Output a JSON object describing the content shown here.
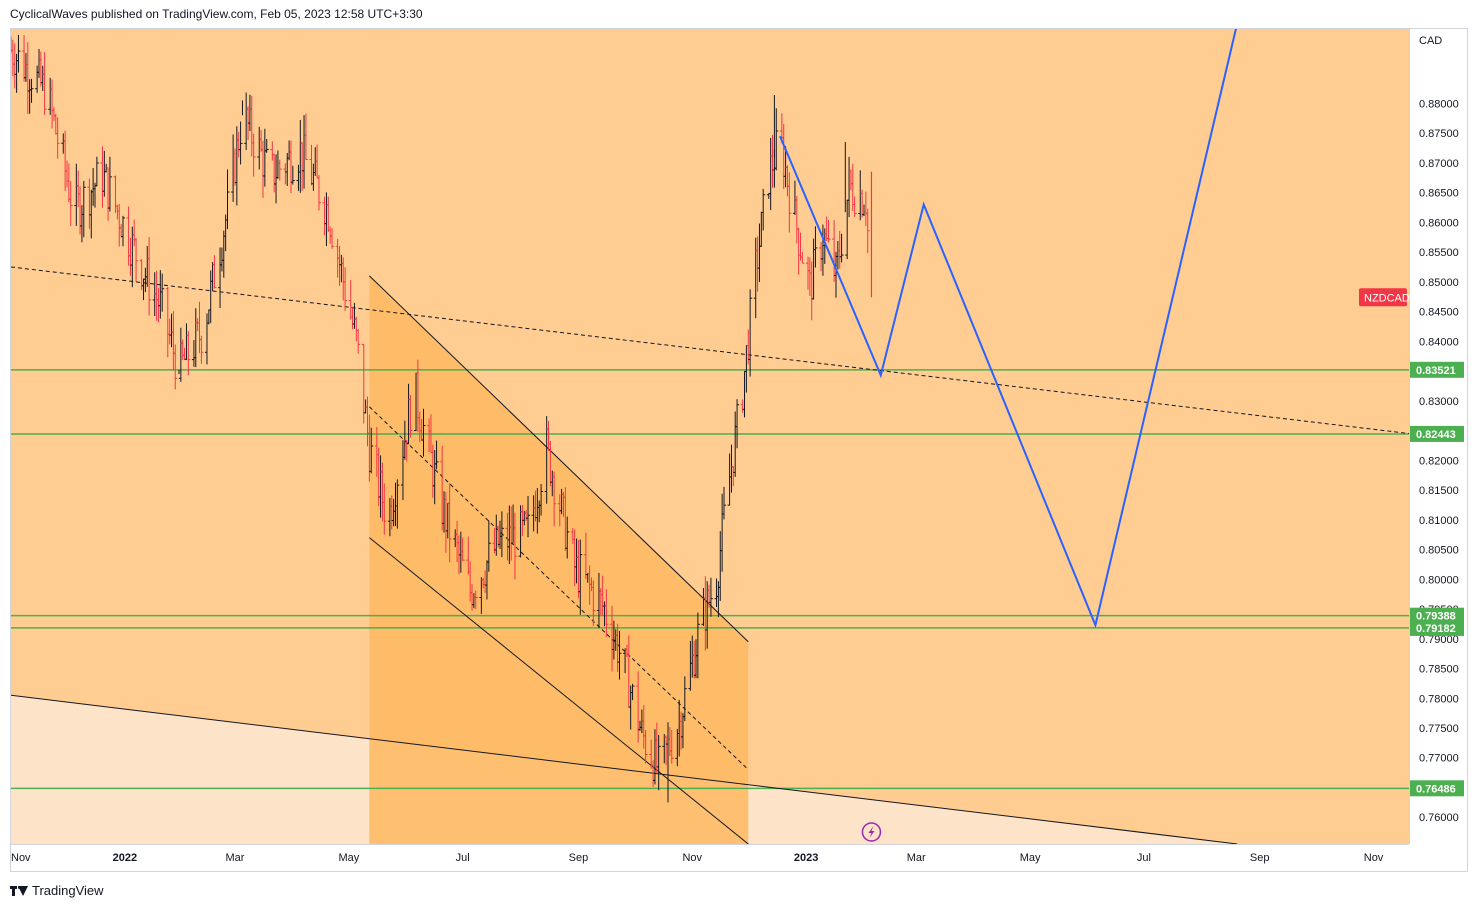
{
  "header": {
    "published_text": "CyclicalWaves published on TradingView.com, Feb 05, 2023 12:58 UTC+3:30"
  },
  "footer": {
    "brand": "TradingView"
  },
  "colors": {
    "background": "#ffcc91",
    "channel_fill": "#ffb860",
    "lower_zone": "#fde3c8",
    "up_candle": "#131722",
    "down_candle": "#f23645",
    "support_line": "#4caf50",
    "forecast": "#2962ff",
    "symbol_badge": "#f23645"
  },
  "chart_data": {
    "type": "ohlc",
    "symbol": "NZDCAD",
    "currency_label": "CAD",
    "last_price": 0.8474,
    "y_range": [
      0.7555,
      0.8925
    ],
    "x_range": [
      "2021-11-01",
      "2023-11-20"
    ],
    "y_tick_values": [
      0.76,
      0.765,
      0.77,
      0.775,
      0.78,
      0.785,
      0.79,
      0.795,
      0.8,
      0.805,
      0.81,
      0.815,
      0.82,
      0.825,
      0.83,
      0.835,
      0.84,
      0.845,
      0.85,
      0.855,
      0.86,
      0.865,
      0.87,
      0.875,
      0.88
    ],
    "y_tick_labels": [
      "0.76000",
      "0.76500",
      "0.77000",
      "0.77500",
      "0.78000",
      "0.78500",
      "0.79000",
      "0.79500",
      "0.80000",
      "0.80500",
      "0.81000",
      "0.81500",
      "0.82000",
      "0.82500",
      "0.83000",
      "0.83500",
      "0.84000",
      "0.84500",
      "0.85000",
      "0.85500",
      "0.86000",
      "0.86500",
      "0.87000",
      "0.87500",
      "0.88000"
    ],
    "x_ticks": [
      {
        "date": "2021-11-01",
        "label": "Nov",
        "bold": false
      },
      {
        "date": "2022-01-01",
        "label": "2022",
        "bold": true
      },
      {
        "date": "2022-03-01",
        "label": "Mar",
        "bold": false
      },
      {
        "date": "2022-05-01",
        "label": "May",
        "bold": false
      },
      {
        "date": "2022-07-01",
        "label": "Jul",
        "bold": false
      },
      {
        "date": "2022-09-01",
        "label": "Sep",
        "bold": false
      },
      {
        "date": "2022-11-01",
        "label": "Nov",
        "bold": false
      },
      {
        "date": "2023-01-01",
        "label": "2023",
        "bold": true
      },
      {
        "date": "2023-03-01",
        "label": "Mar",
        "bold": false
      },
      {
        "date": "2023-05-01",
        "label": "May",
        "bold": false
      },
      {
        "date": "2023-07-01",
        "label": "Jul",
        "bold": false
      },
      {
        "date": "2023-09-01",
        "label": "Sep",
        "bold": false
      },
      {
        "date": "2023-11-01",
        "label": "Nov",
        "bold": false
      }
    ],
    "horizontal_levels": [
      {
        "value": 0.83521,
        "label": "0.83521"
      },
      {
        "value": 0.82443,
        "label": "0.82443"
      },
      {
        "value": 0.79388,
        "label": "0.79388"
      },
      {
        "value": 0.79182,
        "label": "0.79182"
      },
      {
        "value": 0.76486,
        "label": "0.76486"
      }
    ],
    "price_path": [
      [
        "2021-11-01",
        0.889
      ],
      [
        "2021-11-20",
        0.882
      ],
      [
        "2021-12-05",
        0.862
      ],
      [
        "2021-12-20",
        0.868
      ],
      [
        "2022-01-05",
        0.856
      ],
      [
        "2022-01-20",
        0.846
      ],
      [
        "2022-01-30",
        0.8352
      ],
      [
        "2022-02-12",
        0.842
      ],
      [
        "2022-02-25",
        0.862
      ],
      [
        "2022-03-05",
        0.878
      ],
      [
        "2022-03-20",
        0.868
      ],
      [
        "2022-04-05",
        0.872
      ],
      [
        "2022-04-20",
        0.862
      ],
      [
        "2022-05-05",
        0.84
      ],
      [
        "2022-05-12",
        0.822
      ],
      [
        "2022-05-22",
        0.81
      ],
      [
        "2022-06-05",
        0.832
      ],
      [
        "2022-06-20",
        0.812
      ],
      [
        "2022-07-05",
        0.798
      ],
      [
        "2022-07-20",
        0.806
      ],
      [
        "2022-08-05",
        0.808
      ],
      [
        "2022-08-15",
        0.822
      ],
      [
        "2022-08-30",
        0.802
      ],
      [
        "2022-09-15",
        0.795
      ],
      [
        "2022-09-25",
        0.786
      ],
      [
        "2022-10-05",
        0.774
      ],
      [
        "2022-10-14",
        0.768
      ],
      [
        "2022-10-25",
        0.776
      ],
      [
        "2022-11-05",
        0.792
      ],
      [
        "2022-11-14",
        0.8
      ],
      [
        "2022-11-20",
        0.815
      ],
      [
        "2022-11-28",
        0.832
      ],
      [
        "2022-12-05",
        0.852
      ],
      [
        "2022-12-12",
        0.868
      ],
      [
        "2022-12-18",
        0.874
      ],
      [
        "2022-12-25",
        0.862
      ],
      [
        "2023-01-03",
        0.849
      ],
      [
        "2023-01-10",
        0.858
      ],
      [
        "2023-01-17",
        0.851
      ],
      [
        "2023-01-24",
        0.866
      ],
      [
        "2023-02-02",
        0.864
      ],
      [
        "2023-02-05",
        0.8474
      ]
    ],
    "marked_extremes": [
      {
        "date": "2021-11-05",
        "value": 0.8915
      },
      {
        "date": "2022-03-05",
        "value": 0.8805
      },
      {
        "date": "2022-12-15",
        "value": 0.8814
      },
      {
        "date": "2023-01-22",
        "value": 0.8735
      },
      {
        "date": "2022-10-19",
        "value": 0.7625
      },
      {
        "date": "2022-01-30",
        "value": 0.8345
      }
    ],
    "channel": {
      "upper": [
        [
          "2022-05-12",
          0.851
        ],
        [
          "2022-12-01",
          0.7895
        ]
      ],
      "lower": [
        [
          "2022-05-12",
          0.807
        ],
        [
          "2022-12-01",
          0.7555
        ]
      ],
      "mid": [
        [
          "2022-05-12",
          0.829
        ],
        [
          "2022-12-01",
          0.768
        ]
      ],
      "fill_right_date": "2022-12-01"
    },
    "long_dashed_trendline": [
      [
        "2021-11-01",
        0.8525
      ],
      [
        "2023-11-20",
        0.8245
      ]
    ],
    "lower_trendline": [
      [
        "2021-11-01",
        0.7805
      ],
      [
        "2023-08-20",
        0.7555
      ]
    ],
    "forecast_path": [
      [
        "2022-12-18",
        0.8745
      ],
      [
        "2023-02-10",
        0.8343
      ],
      [
        "2023-03-05",
        0.863
      ],
      [
        "2023-06-05",
        0.7923
      ],
      [
        "2023-08-20",
        0.8935
      ]
    ],
    "symbol_badge_value": 0.8474
  }
}
